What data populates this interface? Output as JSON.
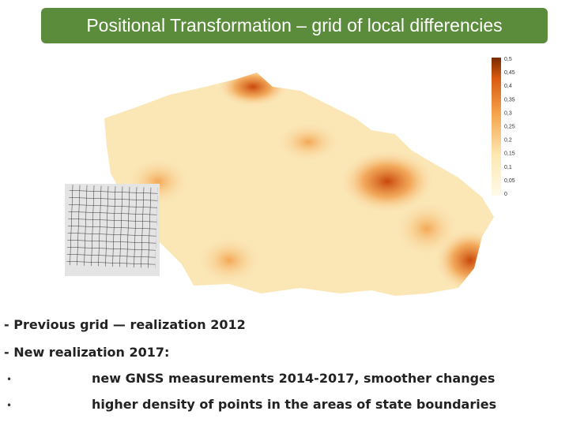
{
  "header": {
    "title": "Positional Transformation – grid of local differencies"
  },
  "legend": {
    "labels": [
      "0,5",
      "0,45",
      "0,4",
      "0,35",
      "0,3",
      "0,25",
      "0,2",
      "0,15",
      "0,1",
      "0,05",
      "0"
    ]
  },
  "text": {
    "lines": [
      "- Previous grid — realization 2012",
      "- New realization 2017:"
    ],
    "bullets": [
      "new GNSS measurements 2014-2017, smoother changes",
      "higher density of points in the areas of state boundaries"
    ]
  }
}
